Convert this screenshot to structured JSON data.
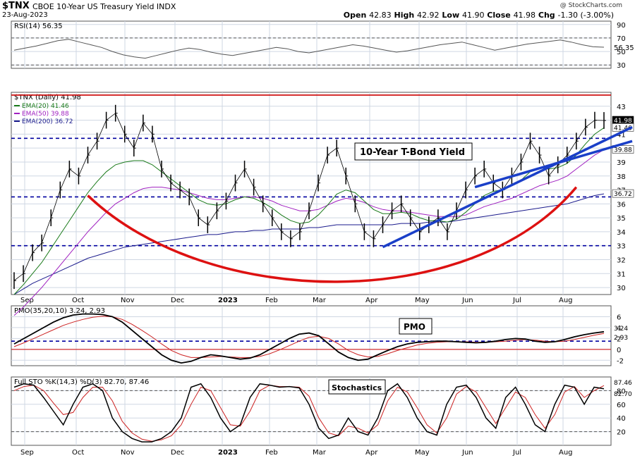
{
  "header": {
    "symbol": "$TNX",
    "name": "CBOE 10-Year US Treasury Yield INDX",
    "date": "23-Aug-2023",
    "open_label": "Open",
    "open": "42.83",
    "high_label": "High",
    "high": "42.92",
    "low_label": "Low",
    "low": "41.90",
    "close_label": "Close",
    "close": "41.98",
    "chg_label": "Chg",
    "chg": "-1.30 (-3.00%)",
    "logo": "@ StockCharts.com"
  },
  "colors": {
    "price": "#000000",
    "ema20": "#1a7a1a",
    "ema50": "#a020c0",
    "ema200": "#1a1a8c",
    "resistance": "#cc0000",
    "dashed": "#0000a0",
    "trend": "#1a3fc8",
    "arc": "#dd1111",
    "grid": "#cfd7e3",
    "panel_bg": "#ffffff"
  },
  "annotations": {
    "title_box": "10-Year T-Bond Yield",
    "pmo_box": "PMO",
    "stoch_box": "Stochastics"
  },
  "chart_data": [
    {
      "type": "line",
      "panel": "rsi",
      "label": "RSI(14) 56.35",
      "ylim": [
        25,
        95
      ],
      "yticks": [
        30,
        50,
        70,
        90
      ],
      "reference_lines": [
        70,
        30
      ],
      "last_value": "56.35",
      "values": [
        52,
        55,
        58,
        62,
        66,
        68,
        64,
        60,
        56,
        50,
        45,
        42,
        40,
        44,
        48,
        52,
        55,
        53,
        49,
        46,
        44,
        47,
        50,
        53,
        56,
        54,
        50,
        48,
        51,
        54,
        57,
        60,
        58,
        55,
        52,
        49,
        51,
        54,
        57,
        60,
        62,
        64,
        60,
        56,
        52,
        55,
        58,
        61,
        63,
        65,
        67,
        64,
        60,
        57,
        56.35
      ]
    },
    {
      "type": "candlestick-line",
      "panel": "price",
      "label": "$TNX (Daily) 41.98",
      "ylim": [
        29.5,
        44
      ],
      "yticks": [
        30,
        31,
        32,
        33,
        34,
        35,
        36,
        37,
        38,
        39,
        40,
        41,
        42,
        43
      ],
      "x_labels": [
        "Sep",
        "Oct",
        "Nov",
        "Dec",
        "2023",
        "Feb",
        "Mar",
        "Apr",
        "May",
        "Jun",
        "Jul",
        "Aug"
      ],
      "legend": [
        {
          "name": "EMA(20) 41.46",
          "color": "#1a7a1a"
        },
        {
          "name": "EMA(50) 39.88",
          "color": "#a020c0"
        },
        {
          "name": "EMA(200) 36.72",
          "color": "#1a1a8c"
        }
      ],
      "horizontal_lines": [
        {
          "value": 43.8,
          "style": "solid",
          "color": "#cc0000"
        },
        {
          "value": 40.7,
          "style": "dashed"
        },
        {
          "value": 36.5,
          "style": "dashed"
        },
        {
          "value": 33.0,
          "style": "dashed"
        }
      ],
      "price_right_labels": [
        "41.98",
        "41.46",
        "39.88",
        "36.72"
      ],
      "close": [
        30.5,
        31.0,
        32.5,
        33.2,
        35.0,
        37.0,
        38.5,
        38.0,
        39.5,
        40.5,
        42.0,
        42.5,
        41.0,
        40.0,
        41.8,
        41.0,
        38.5,
        37.5,
        37.0,
        36.5,
        35.0,
        34.5,
        35.5,
        36.2,
        37.5,
        38.5,
        37.2,
        36.0,
        35.0,
        34.0,
        33.5,
        34.0,
        35.5,
        37.5,
        39.5,
        40.0,
        38.0,
        36.0,
        34.0,
        33.5,
        34.5,
        35.5,
        36.0,
        35.0,
        34.0,
        34.5,
        35.0,
        34.0,
        35.5,
        37.0,
        38.0,
        38.5,
        37.5,
        37.0,
        38.0,
        39.0,
        40.5,
        39.5,
        38.0,
        38.8,
        39.5,
        40.5,
        41.5,
        42.0,
        41.98
      ],
      "ema20": [
        29.5,
        30.2,
        31.0,
        31.8,
        32.8,
        33.8,
        34.8,
        35.8,
        36.8,
        37.6,
        38.3,
        38.8,
        39.0,
        39.1,
        39.1,
        38.8,
        38.3,
        37.8,
        37.3,
        36.8,
        36.3,
        36.0,
        35.9,
        36.0,
        36.3,
        36.5,
        36.4,
        36.1,
        35.7,
        35.2,
        34.8,
        34.6,
        34.7,
        35.2,
        35.9,
        36.7,
        37.0,
        36.8,
        36.2,
        35.6,
        35.3,
        35.3,
        35.4,
        35.3,
        35.0,
        34.8,
        34.8,
        34.7,
        34.9,
        35.4,
        36.0,
        36.6,
        36.9,
        37.0,
        37.3,
        37.7,
        38.3,
        38.6,
        38.5,
        38.6,
        38.9,
        39.5,
        40.3,
        41.0,
        41.46
      ],
      "ema50": [
        28.0,
        28.6,
        29.3,
        30.0,
        30.8,
        31.6,
        32.4,
        33.2,
        34.0,
        34.7,
        35.4,
        36.0,
        36.4,
        36.8,
        37.1,
        37.2,
        37.2,
        37.1,
        37.0,
        36.8,
        36.6,
        36.4,
        36.3,
        36.3,
        36.4,
        36.5,
        36.5,
        36.4,
        36.2,
        35.9,
        35.7,
        35.5,
        35.5,
        35.6,
        35.9,
        36.2,
        36.4,
        36.3,
        36.1,
        35.8,
        35.6,
        35.5,
        35.5,
        35.4,
        35.3,
        35.2,
        35.1,
        35.1,
        35.1,
        35.2,
        35.5,
        35.8,
        36.0,
        36.2,
        36.4,
        36.7,
        37.0,
        37.3,
        37.5,
        37.7,
        38.0,
        38.5,
        39.0,
        39.5,
        39.88
      ],
      "ema200": [
        29.5,
        29.9,
        30.3,
        30.6,
        30.9,
        31.2,
        31.5,
        31.8,
        32.1,
        32.3,
        32.5,
        32.7,
        32.9,
        33.0,
        33.1,
        33.2,
        33.3,
        33.4,
        33.5,
        33.6,
        33.7,
        33.8,
        33.8,
        33.9,
        34.0,
        34.0,
        34.1,
        34.1,
        34.2,
        34.2,
        34.2,
        34.2,
        34.3,
        34.3,
        34.4,
        34.5,
        34.5,
        34.5,
        34.5,
        34.5,
        34.5,
        34.5,
        34.6,
        34.6,
        34.6,
        34.7,
        34.7,
        34.7,
        34.8,
        34.9,
        35.0,
        35.1,
        35.2,
        35.3,
        35.4,
        35.5,
        35.6,
        35.7,
        35.8,
        35.9,
        36.0,
        36.2,
        36.4,
        36.6,
        36.72
      ]
    },
    {
      "type": "line",
      "panel": "pmo",
      "label": "PMO(35,20,10) 3.24, 2.93",
      "ylim": [
        -3,
        8
      ],
      "yticks": [
        -2,
        0,
        2,
        4,
        6
      ],
      "reference_lines": [
        0,
        1.5
      ],
      "right_labels": [
        "3.24",
        "2.93"
      ],
      "pmo": [
        1.0,
        2.0,
        3.0,
        4.0,
        5.0,
        5.8,
        6.3,
        6.5,
        6.5,
        6.4,
        6.0,
        5.0,
        3.5,
        2.0,
        0.5,
        -1.0,
        -2.0,
        -2.5,
        -2.2,
        -1.5,
        -1.0,
        -1.2,
        -1.5,
        -1.8,
        -1.6,
        -1.0,
        0.0,
        1.0,
        2.0,
        2.8,
        3.0,
        2.5,
        1.0,
        -0.5,
        -1.5,
        -2.0,
        -1.8,
        -1.0,
        -0.2,
        0.5,
        1.0,
        1.3,
        1.4,
        1.5,
        1.5,
        1.4,
        1.3,
        1.2,
        1.3,
        1.5,
        1.8,
        2.0,
        1.9,
        1.5,
        1.3,
        1.4,
        1.8,
        2.3,
        2.7,
        3.0,
        3.24
      ],
      "signal": [
        0.5,
        1.2,
        2.0,
        2.8,
        3.6,
        4.4,
        5.0,
        5.5,
        5.9,
        6.1,
        6.0,
        5.5,
        4.6,
        3.5,
        2.3,
        1.0,
        -0.2,
        -1.0,
        -1.5,
        -1.5,
        -1.4,
        -1.3,
        -1.4,
        -1.5,
        -1.5,
        -1.3,
        -0.8,
        -0.1,
        0.7,
        1.5,
        2.2,
        2.4,
        2.0,
        1.0,
        -0.2,
        -1.0,
        -1.4,
        -1.3,
        -0.8,
        -0.2,
        0.3,
        0.8,
        1.1,
        1.3,
        1.4,
        1.4,
        1.4,
        1.3,
        1.3,
        1.4,
        1.5,
        1.7,
        1.8,
        1.7,
        1.5,
        1.4,
        1.5,
        1.8,
        2.2,
        2.6,
        2.93
      ]
    },
    {
      "type": "line",
      "panel": "stochastics",
      "label": "Full STO %K(14,3) %D(3) 82.70, 87.46",
      "ylim": [
        0,
        100
      ],
      "yticks": [
        20,
        40,
        60,
        80
      ],
      "reference_lines": [
        80,
        20
      ],
      "right_labels": [
        "87.46",
        "82.70"
      ],
      "k": [
        85,
        90,
        88,
        70,
        50,
        30,
        60,
        85,
        90,
        80,
        40,
        20,
        10,
        5,
        5,
        10,
        20,
        40,
        85,
        90,
        70,
        40,
        20,
        30,
        70,
        90,
        88,
        85,
        86,
        84,
        60,
        25,
        10,
        15,
        40,
        20,
        15,
        40,
        80,
        90,
        70,
        40,
        20,
        15,
        60,
        85,
        88,
        70,
        40,
        25,
        70,
        85,
        60,
        30,
        20,
        60,
        88,
        85,
        60,
        85,
        82.7
      ],
      "d": [
        80,
        86,
        88,
        80,
        62,
        45,
        48,
        70,
        85,
        85,
        65,
        35,
        18,
        9,
        6,
        8,
        14,
        30,
        60,
        85,
        80,
        55,
        30,
        28,
        50,
        80,
        88,
        86,
        86,
        85,
        72,
        40,
        18,
        14,
        28,
        25,
        18,
        30,
        65,
        85,
        78,
        55,
        30,
        18,
        40,
        75,
        86,
        78,
        55,
        32,
        55,
        78,
        70,
        45,
        25,
        45,
        78,
        86,
        70,
        80,
        87.46
      ]
    }
  ]
}
